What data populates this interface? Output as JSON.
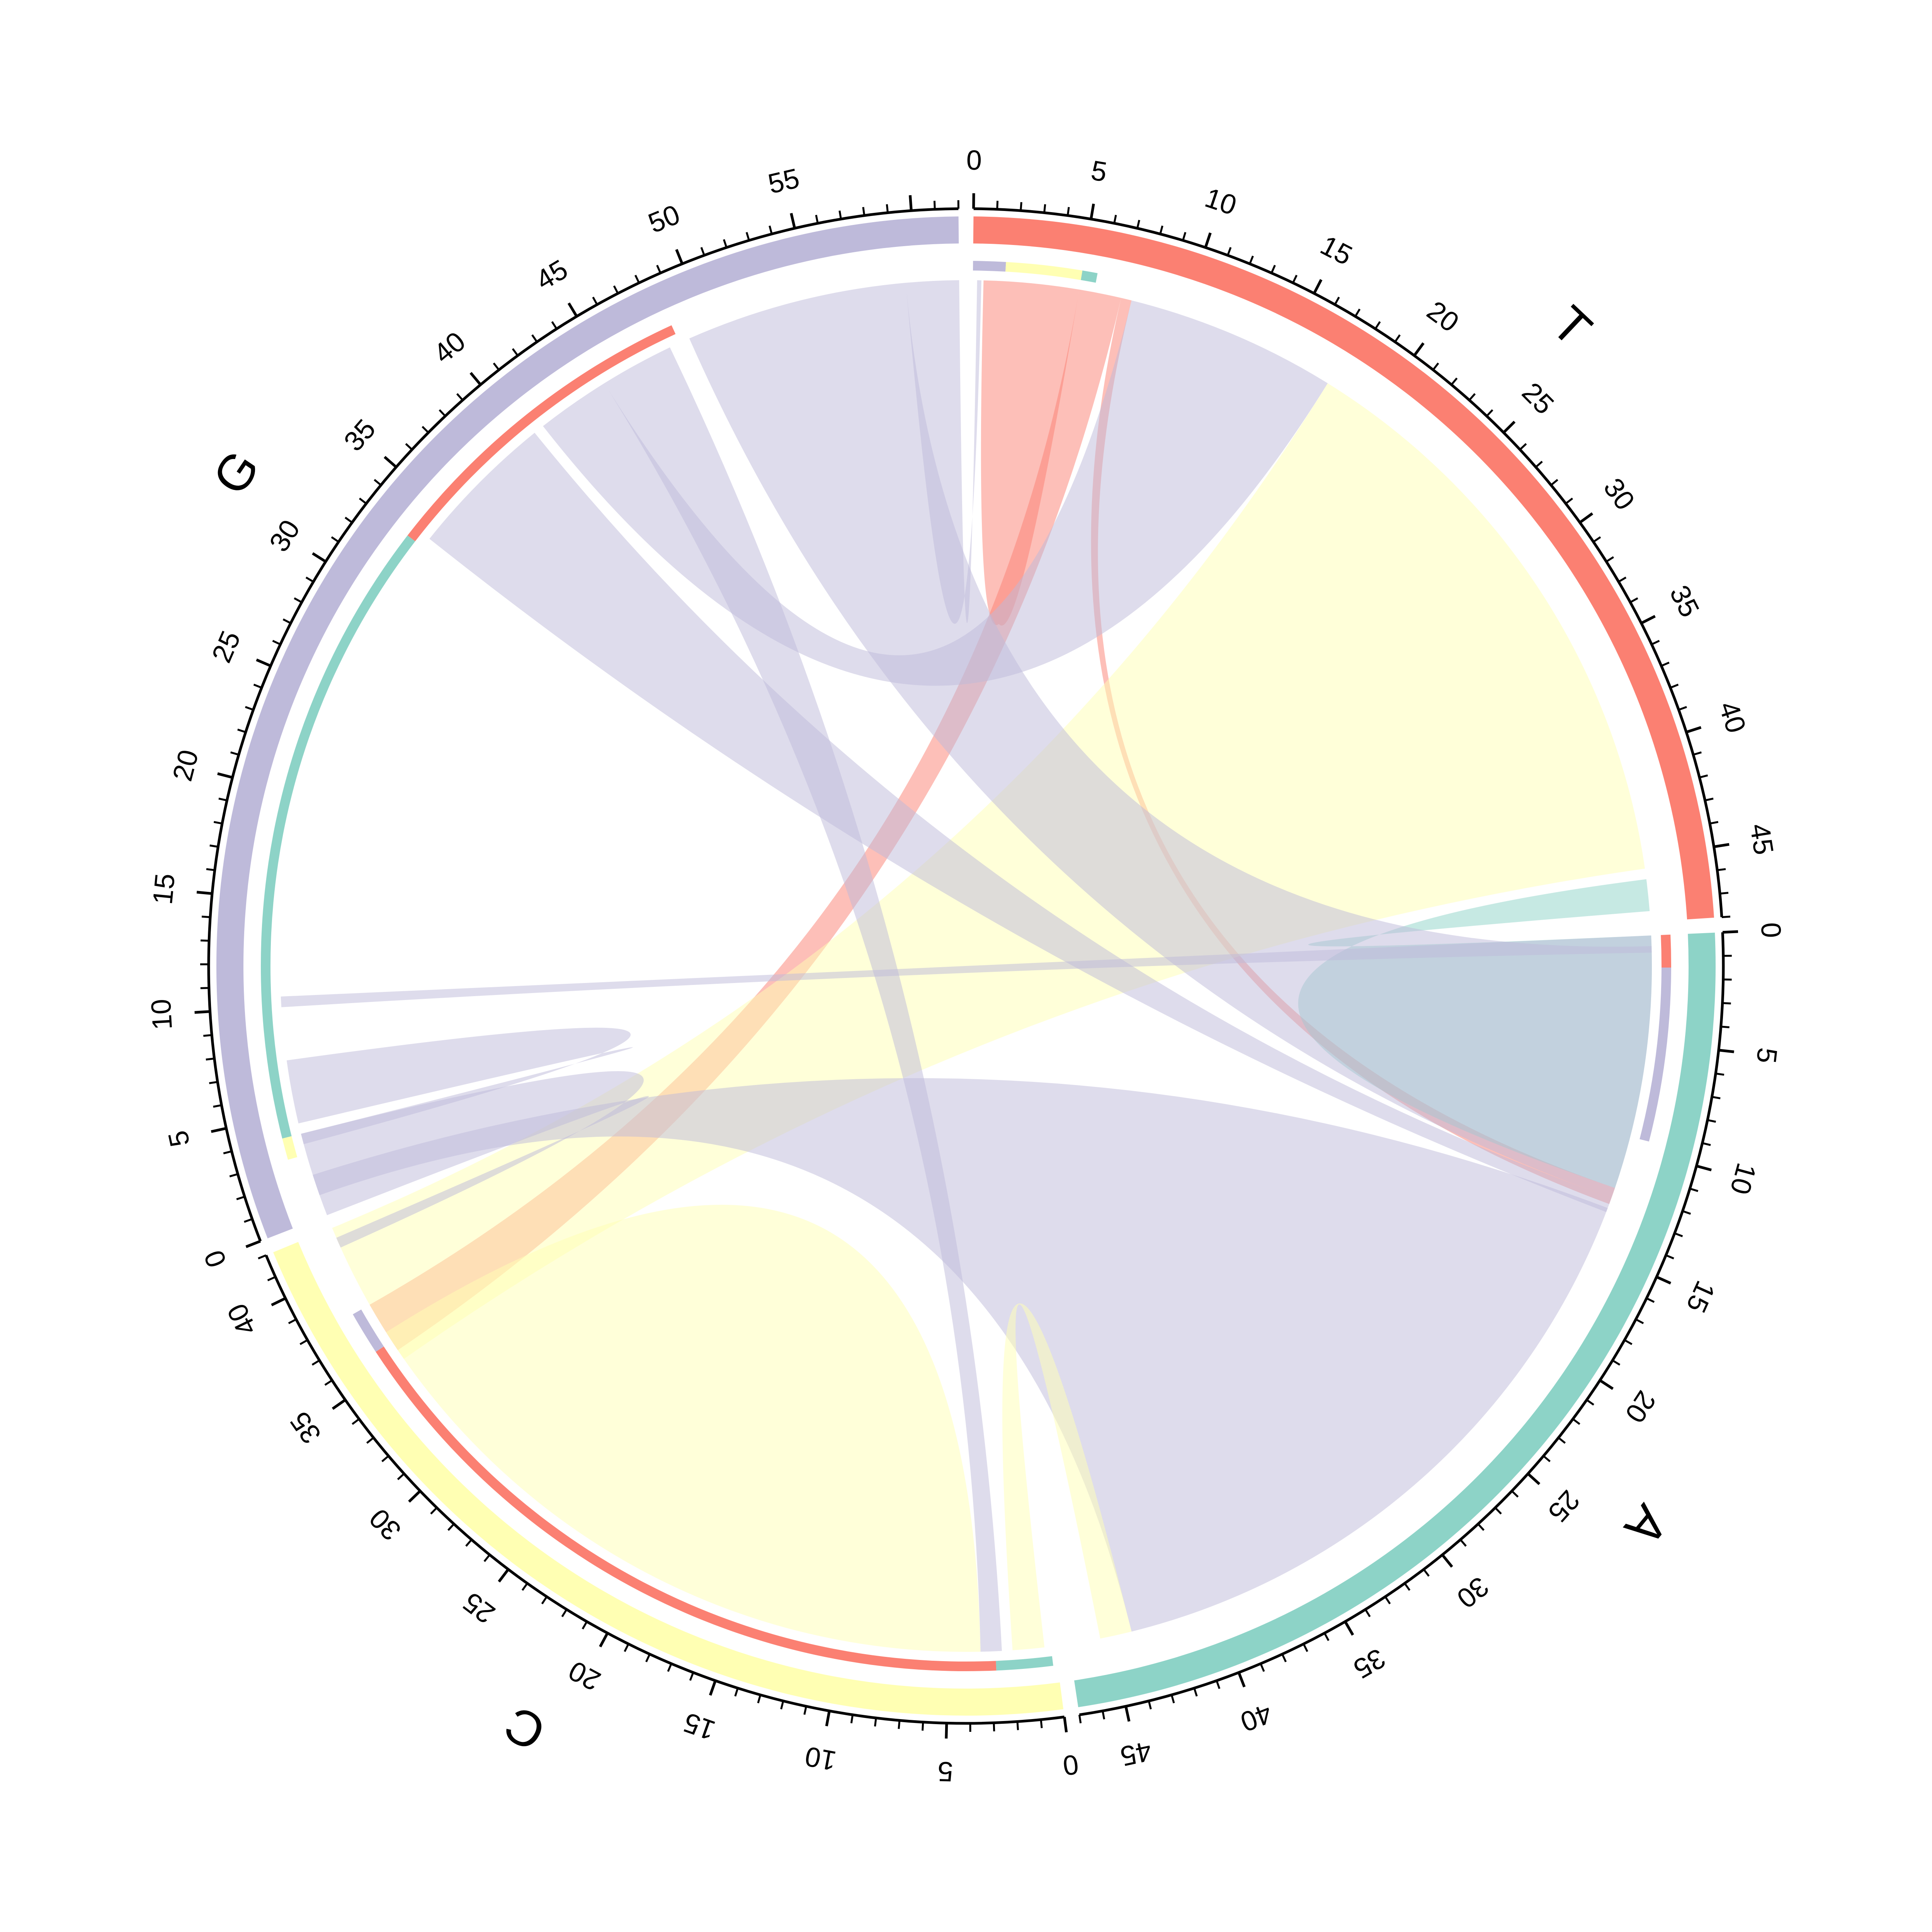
{
  "chart_data": {
    "type": "chord",
    "title": "",
    "sectors": [
      {
        "name": "T",
        "size": 48,
        "color": "#FB8072",
        "tick_labels": [
          "0",
          "5",
          "10",
          "15",
          "20",
          "25",
          "30",
          "35",
          "40",
          "45"
        ]
      },
      {
        "name": "A",
        "size": 47,
        "color": "#8DD3C7",
        "tick_labels": [
          "0",
          "5",
          "10",
          "15",
          "20",
          "25",
          "30",
          "35",
          "40",
          "45"
        ]
      },
      {
        "name": "C",
        "size": 42,
        "color": "#FFFFB3",
        "tick_labels": [
          "0",
          "5",
          "10",
          "15",
          "20",
          "25",
          "30",
          "35",
          "40"
        ]
      },
      {
        "name": "G",
        "size": 62,
        "color": "#BEBADA",
        "tick_labels": [
          "0",
          "5",
          "10",
          "15",
          "20",
          "25",
          "30",
          "35",
          "40",
          "45",
          "50",
          "55"
        ]
      }
    ],
    "links": [
      {
        "from": "T",
        "from_range": [
          0.5,
          5.0
        ],
        "to": "T",
        "to_range": [
          1.0,
          4.5
        ]
      },
      {
        "from": "T",
        "from_range": [
          5.0,
          7.0
        ],
        "to": "C",
        "to_range": [
          35.5,
          38.0
        ]
      },
      {
        "from": "T",
        "from_range": [
          7.0,
          7.5
        ],
        "to": "A",
        "to_range": [
          12.0,
          12.8
        ]
      },
      {
        "from": "G",
        "from_range": [
          41.0,
          44.5
        ],
        "to": "T",
        "to_range": [
          7.5,
          17.5
        ]
      },
      {
        "from": "C",
        "from_range": [
          35.0,
          42.0
        ],
        "to": "T",
        "to_range": [
          17.5,
          45.5
        ]
      },
      {
        "from": "A",
        "from_range": [
          0.0,
          12.0
        ],
        "to": "T",
        "to_range": [
          46.0,
          47.5
        ]
      },
      {
        "from": "G",
        "from_range": [
          10.0,
          10.5
        ],
        "to": "A",
        "to_range": [
          0.0,
          0.8
        ]
      },
      {
        "from": "G",
        "from_range": [
          33.5,
          40.5
        ],
        "to": "A",
        "to_range": [
          12.5,
          13.2
        ]
      },
      {
        "from": "G",
        "from_range": [
          1.0,
          2.0
        ],
        "to": "A",
        "to_range": [
          13.0,
          44.0
        ]
      },
      {
        "from": "C",
        "from_range": [
          0.5,
          2.0
        ],
        "to": "A",
        "to_range": [
          44.0,
          45.5
        ]
      },
      {
        "from": "G",
        "from_range": [
          49.0,
          59.5
        ],
        "to": "A",
        "to_range": [
          0.5,
          12.5
        ]
      },
      {
        "from": "G",
        "from_range": [
          44.5,
          48.0
        ],
        "to": "C",
        "to_range": [
          2.5,
          3.5
        ]
      },
      {
        "from": "G",
        "from_range": [
          0.0,
          4.0
        ],
        "to": "C",
        "to_range": [
          41.0,
          41.5
        ]
      },
      {
        "from": "C",
        "from_range": [
          3.5,
          36.0
        ],
        "to": "C",
        "to_range": [
          36.0,
          36.5
        ]
      },
      {
        "from": "G",
        "from_range": [
          4.5,
          7.5
        ],
        "to": "G",
        "to_range": [
          3.5,
          4.0
        ]
      },
      {
        "from": "G",
        "from_range": [
          59.5,
          62.0
        ],
        "to": "T",
        "to_range": [
          0.2,
          0.4
        ]
      }
    ],
    "inner_track": {
      "T": [
        {
          "range": [
            0.0,
            1.5
          ],
          "color": "#BEBADA"
        },
        {
          "range": [
            1.5,
            5.0
          ],
          "color": "#FFFFB3"
        },
        {
          "range": [
            5.0,
            5.7
          ],
          "color": "#8DD3C7"
        }
      ],
      "A": [
        {
          "range": [
            0.0,
            1.5
          ],
          "color": "#FB8072"
        },
        {
          "range": [
            1.5,
            9.5
          ],
          "color": "#BEBADA"
        }
      ],
      "C": [
        {
          "range": [
            0.2,
            2.8
          ],
          "color": "#8DD3C7"
        },
        {
          "range": [
            2.8,
            36.0
          ],
          "color": "#FB8072"
        },
        {
          "range": [
            36.0,
            38.0
          ],
          "color": "#BEBADA"
        }
      ],
      "G": [
        {
          "range": [
            3.0,
            4.0
          ],
          "color": "#FFFFB3"
        },
        {
          "range": [
            4.0,
            33.0
          ],
          "color": "#8DD3C7"
        },
        {
          "range": [
            33.0,
            48.5
          ],
          "color": "#FB8072"
        }
      ]
    }
  }
}
